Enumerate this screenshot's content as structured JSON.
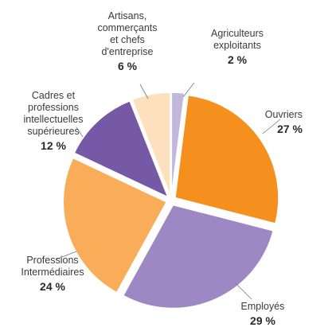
{
  "chart_data": {
    "type": "pie",
    "slices": [
      {
        "name": [
          "Agriculteurs",
          "exploitants"
        ],
        "value": 2,
        "value_label": "2 %",
        "color": "#c3b6dc"
      },
      {
        "name": [
          "Ouvriers"
        ],
        "value": 27,
        "value_label": "27 %",
        "color": "#f5901e"
      },
      {
        "name": [
          "Employés"
        ],
        "value": 29,
        "value_label": "29 %",
        "color": "#9d88c4"
      },
      {
        "name": [
          "Professions",
          "Intermédiaires"
        ],
        "value": 24,
        "value_label": "24 %",
        "color": "#f9ad59"
      },
      {
        "name": [
          "Cadres et",
          "professions",
          "intellectuelles",
          "supérieures"
        ],
        "value": 12,
        "value_label": "12 %",
        "color": "#7659a6"
      },
      {
        "name": [
          "Artisans,",
          "commerçants",
          "et chefs",
          "d'entreprise"
        ],
        "value": 6,
        "value_label": "6 %",
        "color": "#fde0be"
      }
    ],
    "start_angle": "12 o'clock",
    "direction": "clockwise",
    "exploded": true,
    "legend": "none (slice labels outside pie)"
  }
}
